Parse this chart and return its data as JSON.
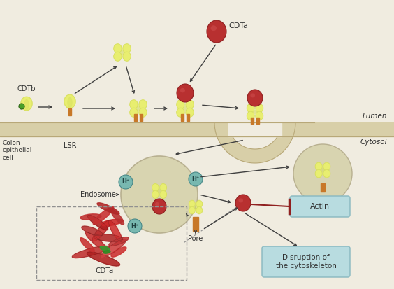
{
  "bg_color": "#f0ece0",
  "membrane_color": "#d8cfa8",
  "membrane_line_color": "#b8a878",
  "yellow_body": "#e8ee70",
  "yellow_body2": "#d8e060",
  "orange_stem": "#c87828",
  "red_ball": "#b83030",
  "red_ball_dark": "#902020",
  "green_ball": "#48a028",
  "teal_h": "#78b8b0",
  "teal_h_dark": "#488888",
  "endosome_color": "#d8d4b0",
  "endosome_edge": "#b8b090",
  "actin_box_fill": "#b8dce0",
  "actin_box_edge": "#88b8c0",
  "disrupt_box_fill": "#b8dce0",
  "disrupt_box_edge": "#88b8c0",
  "dashed_box_edge": "#909090",
  "arrow_color": "#404040",
  "red_inhibit": "#902020",
  "text_color": "#303030",
  "labels": {
    "CDTb": "CDTb",
    "CDTa_top": "CDTa",
    "LSR": "LSR",
    "Lumen": "Lumen",
    "Cytosol": "Cytosol",
    "Colon": "Colon\nepithelial\ncell",
    "Endosome": "Endosome",
    "Pore": "Pore",
    "Actin": "Actin",
    "Disruption": "Disruption of\nthe cytoskeleton",
    "CDTa_box": "CDTa",
    "Hplus": "H⁺"
  }
}
